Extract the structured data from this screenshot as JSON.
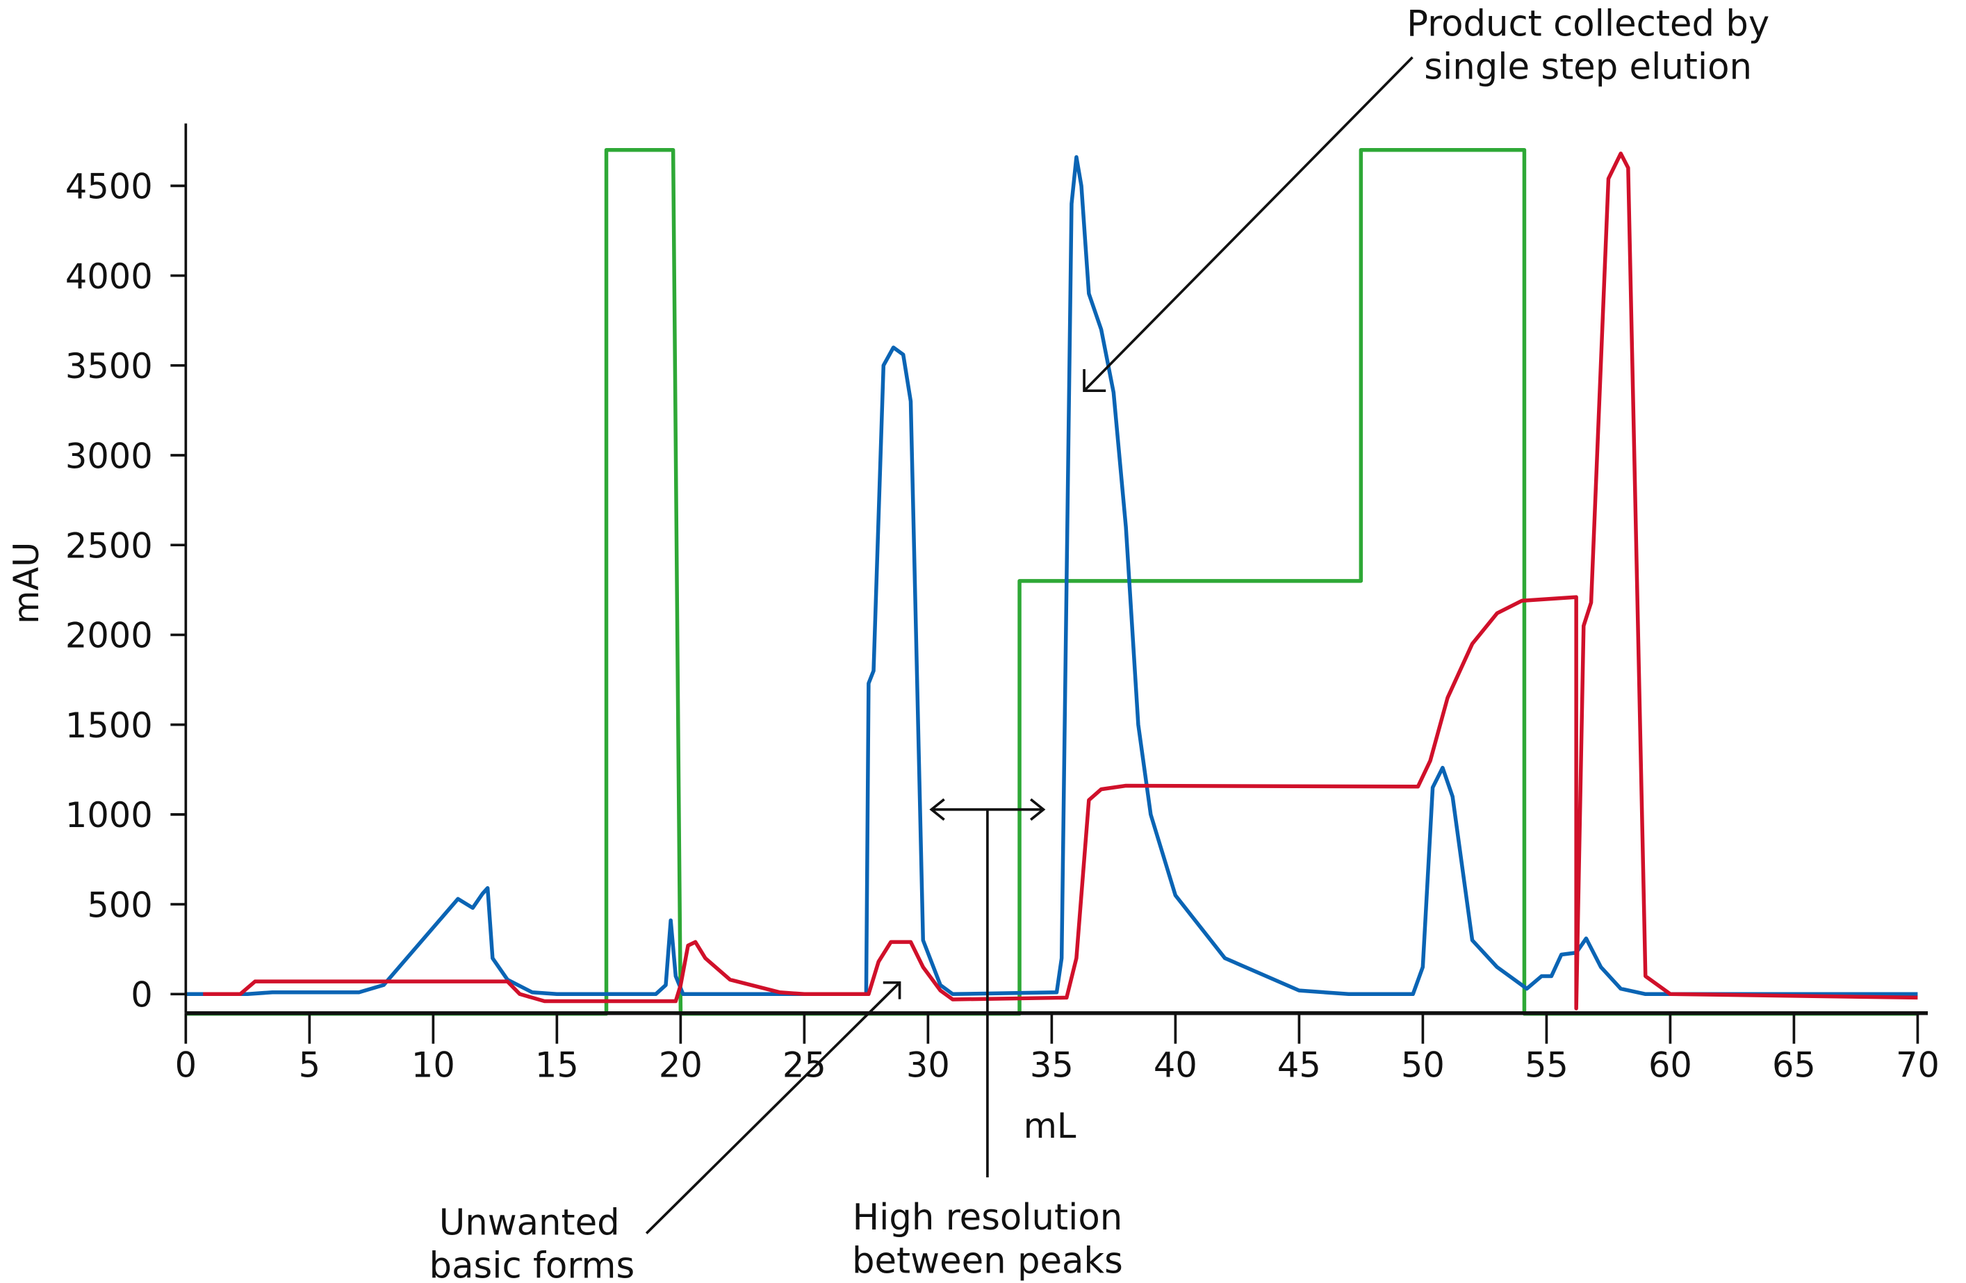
{
  "chart_data": {
    "type": "line",
    "title": "",
    "xlabel": "mL",
    "ylabel": "mAU",
    "xlim": [
      0,
      70
    ],
    "ylim": [
      -110,
      4800
    ],
    "xticks": [
      0,
      5,
      10,
      15,
      20,
      25,
      30,
      35,
      40,
      45,
      50,
      55,
      60,
      65,
      70
    ],
    "yticks": [
      0,
      500,
      1000,
      1500,
      2000,
      2500,
      3000,
      3500,
      4000,
      4500
    ],
    "grid": false,
    "colors": {
      "blue": "#0a64b4",
      "red": "#d0102a",
      "green": "#2ea836"
    },
    "series": [
      {
        "color": "#2ea836",
        "points": [
          [
            0,
            -110
          ],
          [
            17,
            -110
          ],
          [
            17,
            4700
          ],
          [
            19.7,
            4700
          ],
          [
            20,
            -110
          ],
          [
            33.7,
            -110
          ],
          [
            33.7,
            2300
          ],
          [
            47.5,
            2300
          ],
          [
            47.5,
            4700
          ],
          [
            54.1,
            4700
          ],
          [
            54.1,
            -110
          ],
          [
            70,
            -110
          ]
        ]
      },
      {
        "color": "#0a64b4",
        "points": [
          [
            0,
            0
          ],
          [
            2.5,
            0
          ],
          [
            3.5,
            10
          ],
          [
            7,
            10
          ],
          [
            8,
            50
          ],
          [
            11,
            530
          ],
          [
            11.6,
            480
          ],
          [
            12,
            560
          ],
          [
            12.2,
            590
          ],
          [
            12.4,
            200
          ],
          [
            13,
            80
          ],
          [
            14,
            10
          ],
          [
            15,
            0
          ],
          [
            19,
            0
          ],
          [
            19.4,
            50
          ],
          [
            19.6,
            410
          ],
          [
            19.8,
            100
          ],
          [
            20.1,
            0
          ],
          [
            27.5,
            0
          ],
          [
            27.6,
            1730
          ],
          [
            27.8,
            1800
          ],
          [
            28.2,
            3500
          ],
          [
            28.6,
            3600
          ],
          [
            29,
            3560
          ],
          [
            29.3,
            3300
          ],
          [
            29.8,
            300
          ],
          [
            30.5,
            50
          ],
          [
            31,
            0
          ],
          [
            35.2,
            10
          ],
          [
            35.4,
            200
          ],
          [
            35.8,
            4400
          ],
          [
            36,
            4660
          ],
          [
            36.2,
            4500
          ],
          [
            36.5,
            3900
          ],
          [
            37,
            3700
          ],
          [
            37.5,
            3350
          ],
          [
            38,
            2600
          ],
          [
            38.5,
            1500
          ],
          [
            39,
            1000
          ],
          [
            40,
            550
          ],
          [
            42,
            200
          ],
          [
            45,
            20
          ],
          [
            47,
            0
          ],
          [
            49.6,
            0
          ],
          [
            50,
            150
          ],
          [
            50.4,
            1150
          ],
          [
            50.8,
            1260
          ],
          [
            51.2,
            1100
          ],
          [
            52,
            300
          ],
          [
            53,
            150
          ],
          [
            54,
            50
          ],
          [
            54.2,
            30
          ],
          [
            54.8,
            100
          ],
          [
            55.2,
            100
          ],
          [
            55.6,
            220
          ],
          [
            56.2,
            230
          ],
          [
            56.6,
            310
          ],
          [
            57.2,
            150
          ],
          [
            58,
            30
          ],
          [
            59,
            0
          ],
          [
            70,
            0
          ]
        ]
      },
      {
        "color": "#d0102a",
        "points": [
          [
            0.7,
            0
          ],
          [
            2.2,
            0
          ],
          [
            2.8,
            70
          ],
          [
            13,
            70
          ],
          [
            13.5,
            0
          ],
          [
            14.5,
            -40
          ],
          [
            19.8,
            -40
          ],
          [
            20,
            50
          ],
          [
            20.3,
            270
          ],
          [
            20.6,
            290
          ],
          [
            21,
            200
          ],
          [
            22,
            80
          ],
          [
            24,
            10
          ],
          [
            25,
            0
          ],
          [
            27.6,
            0
          ],
          [
            28,
            180
          ],
          [
            28.5,
            290
          ],
          [
            29.3,
            290
          ],
          [
            29.8,
            150
          ],
          [
            30.5,
            20
          ],
          [
            31,
            -30
          ],
          [
            35.6,
            -20
          ],
          [
            36,
            200
          ],
          [
            36.5,
            1080
          ],
          [
            37,
            1140
          ],
          [
            38,
            1160
          ],
          [
            49.8,
            1155
          ],
          [
            50.3,
            1300
          ],
          [
            51,
            1650
          ],
          [
            52,
            1950
          ],
          [
            53,
            2120
          ],
          [
            54,
            2190
          ],
          [
            56.2,
            2210
          ],
          [
            56.2,
            -80
          ],
          [
            56.5,
            2050
          ],
          [
            56.8,
            2180
          ],
          [
            57.5,
            4540
          ],
          [
            58,
            4680
          ],
          [
            58.3,
            4600
          ],
          [
            59,
            100
          ],
          [
            60,
            0
          ],
          [
            70,
            -20
          ]
        ]
      }
    ],
    "annotations": [
      {
        "lines": [
          "Product collected by",
          "single step elution"
        ]
      },
      {
        "lines": [
          "Unwanted",
          "basic forms"
        ]
      },
      {
        "lines": [
          "High resolution",
          "between peaks"
        ]
      }
    ]
  }
}
